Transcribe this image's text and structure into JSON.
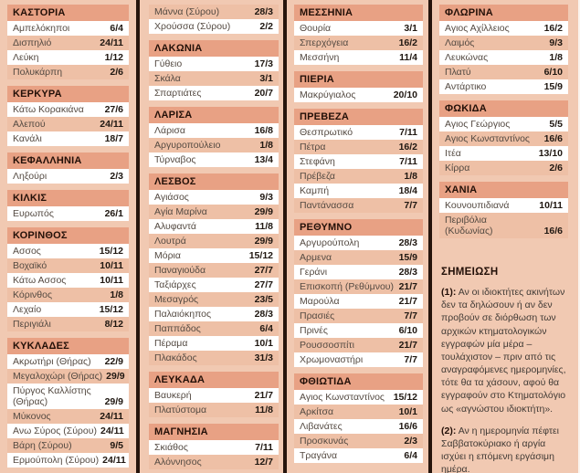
{
  "colors": {
    "page_bg": "#f1c9b2",
    "header_bg": "#e8a184",
    "row_pink": "#eec0a6",
    "row_white": "#ffffff",
    "divider": "#26140c"
  },
  "columns": [
    {
      "sections": [
        {
          "title": "ΚΑΣΤΟΡΙΑ",
          "rows": [
            {
              "name": "Αμπελόκηποι",
              "date": "6/4"
            },
            {
              "name": "Δισπηλιό",
              "date": "24/11"
            },
            {
              "name": "Λεύκη",
              "date": "1/12"
            },
            {
              "name": "Πολυκάρπη",
              "date": "2/6"
            }
          ]
        },
        {
          "title": "ΚΕΡΚΥΡΑ",
          "rows": [
            {
              "name": "Κάτω Κορακιάνα",
              "date": "27/6"
            },
            {
              "name": "Αλεπού",
              "date": "24/11"
            },
            {
              "name": "Κανάλι",
              "date": "18/7"
            }
          ]
        },
        {
          "title": "ΚΕΦΑΛΛΗΝΙΑ",
          "rows": [
            {
              "name": "Ληξούρι",
              "date": "2/3"
            }
          ]
        },
        {
          "title": "ΚΙΛΚΙΣ",
          "rows": [
            {
              "name": "Ευρωπός",
              "date": "26/1"
            }
          ]
        },
        {
          "title": "ΚΟΡΙΝΘΟΣ",
          "rows": [
            {
              "name": "Ασσος",
              "date": "15/12"
            },
            {
              "name": "Βοχαϊκό",
              "date": "10/11"
            },
            {
              "name": "Κάτω Ασσος",
              "date": "10/11"
            },
            {
              "name": "Κόρινθος",
              "date": "1/8"
            },
            {
              "name": "Λεχαίο",
              "date": "15/12"
            },
            {
              "name": "Περιγιάλι",
              "date": "8/12"
            }
          ]
        },
        {
          "title": "ΚΥΚΛΑΔΕΣ",
          "rows": [
            {
              "name": "Ακρωτήρι (Θήρας)",
              "date": "22/9"
            },
            {
              "name": "Μεγαλοχώρι (Θήρας)",
              "date": "29/9"
            },
            {
              "name": "Πύργος Καλλίστης\n(Θήρας)",
              "date": "29/9"
            },
            {
              "name": "Μύκονος",
              "date": "24/11"
            },
            {
              "name": "Ανω Σύρος (Σύρου)",
              "date": "24/11"
            },
            {
              "name": "Βάρη (Σύρου)",
              "date": "9/5"
            },
            {
              "name": "Ερμούπολη (Σύρου)",
              "date": "24/11"
            }
          ]
        }
      ]
    },
    {
      "sections": [
        {
          "title": "",
          "start_shade": "pink",
          "rows": [
            {
              "name": "Μάννα (Σύρου)",
              "date": "28/3"
            },
            {
              "name": "Χρούσσα (Σύρου)",
              "date": "2/2"
            }
          ]
        },
        {
          "title": "ΛΑΚΩΝΙΑ",
          "rows": [
            {
              "name": "Γύθειο",
              "date": "17/3"
            },
            {
              "name": "Σκάλα",
              "date": "3/1"
            },
            {
              "name": "Σπαρτιάτες",
              "date": "20/7"
            }
          ]
        },
        {
          "title": "ΛΑΡΙΣΑ",
          "rows": [
            {
              "name": "Λάρισα",
              "date": "16/8"
            },
            {
              "name": "Αργυροπούλειο",
              "date": "1/8"
            },
            {
              "name": "Τύρναβος",
              "date": "13/4"
            }
          ]
        },
        {
          "title": "ΛΕΣΒΟΣ",
          "rows": [
            {
              "name": "Αγιάσος",
              "date": "9/3"
            },
            {
              "name": "Αγία Μαρίνα",
              "date": "29/9"
            },
            {
              "name": "Αλυφαντά",
              "date": "11/8"
            },
            {
              "name": "Λουτρά",
              "date": "29/9"
            },
            {
              "name": "Μόρια",
              "date": "15/12"
            },
            {
              "name": "Παναγιούδα",
              "date": "27/7"
            },
            {
              "name": "Ταξιάρχες",
              "date": "27/7"
            },
            {
              "name": "Μεσαγρός",
              "date": "23/5"
            },
            {
              "name": "Παλαιόκηπος",
              "date": "28/3"
            },
            {
              "name": "Παππάδος",
              "date": "6/4"
            },
            {
              "name": "Πέραμα",
              "date": "10/1"
            },
            {
              "name": "Πλακάδος",
              "date": "31/3"
            }
          ]
        },
        {
          "title": "ΛΕΥΚΑΔΑ",
          "rows": [
            {
              "name": "Βαυκερή",
              "date": "21/7"
            },
            {
              "name": "Πλατύστομα",
              "date": "11/8"
            }
          ]
        },
        {
          "title": "ΜΑΓΝΗΣΙΑ",
          "rows": [
            {
              "name": "Σκιάθος",
              "date": "7/11"
            },
            {
              "name": "Αλόννησος",
              "date": "12/7"
            }
          ]
        }
      ]
    },
    {
      "sections": [
        {
          "title": "ΜΕΣΣΗΝΙΑ",
          "rows": [
            {
              "name": "Θουρία",
              "date": "3/1"
            },
            {
              "name": "Σπερχόγεια",
              "date": "16/2"
            },
            {
              "name": "Μεσσήνη",
              "date": "11/4"
            }
          ]
        },
        {
          "title": "ΠΙΕΡΙΑ",
          "rows": [
            {
              "name": "Μακρύγιαλος",
              "date": "20/10"
            }
          ]
        },
        {
          "title": "ΠΡΕΒΕΖΑ",
          "rows": [
            {
              "name": "Θεσπρωτικό",
              "date": "7/11"
            },
            {
              "name": "Πέτρα",
              "date": "16/2"
            },
            {
              "name": "Στεφάνη",
              "date": "7/11"
            },
            {
              "name": "Πρέβεζα",
              "date": "1/8"
            },
            {
              "name": "Καμπή",
              "date": "18/4"
            },
            {
              "name": "Παντάνασσα",
              "date": "7/7"
            }
          ]
        },
        {
          "title": "ΡΕΘΥΜΝΟ",
          "rows": [
            {
              "name": "Αργυρούπολη",
              "date": "28/3"
            },
            {
              "name": "Αρμενα",
              "date": "15/9"
            },
            {
              "name": "Γεράνι",
              "date": "28/3"
            },
            {
              "name": "Επισκοπή (Ρεθύμνου)",
              "date": "21/7"
            },
            {
              "name": "Μαρούλα",
              "date": "21/7"
            },
            {
              "name": "Πρασιές",
              "date": "7/7"
            },
            {
              "name": "Πρινές",
              "date": "6/10"
            },
            {
              "name": "Ρουσσοσπίτι",
              "date": "21/7"
            },
            {
              "name": "Χρωμοναστήρι",
              "date": "7/7"
            }
          ]
        },
        {
          "title": "ΦΘΙΩΤΙΔΑ",
          "rows": [
            {
              "name": "Αγιος Κωνσταντίνος",
              "date": "15/12"
            },
            {
              "name": "Αρκίτσα",
              "date": "10/1"
            },
            {
              "name": "Λιβανάτες",
              "date": "16/6"
            },
            {
              "name": "Προσκυνάς",
              "date": "2/3"
            },
            {
              "name": "Τραγάνα",
              "date": "6/4"
            }
          ]
        }
      ]
    },
    {
      "sections": [
        {
          "title": "ΦΛΩΡΙΝΑ",
          "rows": [
            {
              "name": "Αγιος Αχίλλειος",
              "date": "16/2"
            },
            {
              "name": "Λαιμός",
              "date": "9/3"
            },
            {
              "name": "Λευκώνας",
              "date": "1/8"
            },
            {
              "name": "Πλατύ",
              "date": "6/10"
            },
            {
              "name": "Αντάρτικο",
              "date": "15/9"
            }
          ]
        },
        {
          "title": "ΦΩΚΙΔΑ",
          "rows": [
            {
              "name": "Αγιος Γεώργιος",
              "date": "5/5"
            },
            {
              "name": "Αγιος Κωνσταντίνος",
              "date": "16/6"
            },
            {
              "name": "Ιτέα",
              "date": "13/10"
            },
            {
              "name": "Κίρρα",
              "date": "2/6"
            }
          ]
        },
        {
          "title": "ΧΑΝΙΑ",
          "rows": [
            {
              "name": "Κουνουπιδιανά",
              "date": "10/11"
            },
            {
              "name": "Περιβόλια\n(Κυδωνίας)",
              "date": "16/6"
            }
          ]
        }
      ]
    }
  ],
  "notes": {
    "title": "ΣΗΜΕΙΩΣΗ",
    "items": [
      {
        "lead": "(1):",
        "text": "Αν οι ιδιοκτήτες ακινήτων δεν τα δηλώσουν ή αν δεν προβούν σε διόρθωση των αρχικών κτηματολογικών εγγραφών μία μέρα – τουλάχιστον – πριν από τις αναγραφόμενες ημερομηνίες, τότε θα τα χάσουν, αφού θα εγγραφούν στο Κτηματολόγιο ως «αγνώστου ιδιοκτήτη»."
      },
      {
        "lead": "(2):",
        "text": "Αν η ημερομηνία πέφτει Σαββατοκύριακο ή αργία ισχύει η επόμενη εργάσιμη ημέρα."
      }
    ]
  }
}
